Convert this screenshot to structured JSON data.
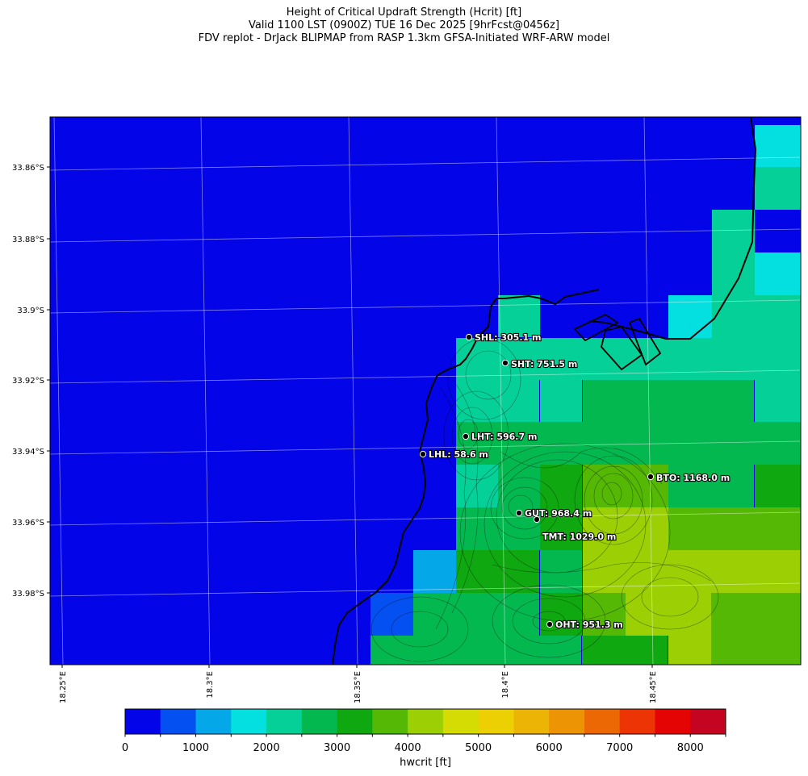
{
  "title": {
    "line1": "Height of Critical Updraft Strength (Hcrit) [ft]",
    "line2": "Valid 1100 LST (0900Z) TUE 16 Dec 2025 [9hrFcst@0456z]",
    "line3": "FDV replot - DrJack BLIPMAP from RASP 1.3km GFSA-Initiated WRF-ARW model"
  },
  "lat_ticks": [
    "33.86°S",
    "33.88°S",
    "33.9°S",
    "33.92°S",
    "33.94°S",
    "33.96°S",
    "33.98°S"
  ],
  "lon_ticks": [
    "18.25°E",
    "18.3°E",
    "18.35°E",
    "18.4°E",
    "18.45°E"
  ],
  "colorbar": {
    "label": "hwcrit [ft]",
    "tick_labels": [
      "0",
      "1000",
      "2000",
      "3000",
      "4000",
      "5000",
      "6000",
      "7000",
      "8000"
    ],
    "levels": [
      0,
      500,
      1000,
      1500,
      2000,
      2500,
      3000,
      3500,
      4000,
      4500,
      5000,
      5500,
      6000,
      6500,
      7000,
      7500,
      8000,
      8500
    ],
    "colors": [
      "#0404e8",
      "#0450f0",
      "#04a8e8",
      "#04e0e0",
      "#04d098",
      "#04b850",
      "#10a810",
      "#54b804",
      "#9cd004",
      "#d4dc04",
      "#ecd004",
      "#ecb404",
      "#ec9404",
      "#ec6804",
      "#ec3404",
      "#e40404",
      "#c40420"
    ]
  },
  "stations": [
    {
      "name": "SHL",
      "label": "SHL: 305.1 m"
    },
    {
      "name": "SHT",
      "label": "SHT: 751.5 m"
    },
    {
      "name": "LHT",
      "label": "LHT: 596.7 m"
    },
    {
      "name": "LHL",
      "label": "LHL: 58.6 m"
    },
    {
      "name": "BTO",
      "label": "BTO: 1168.0 m"
    },
    {
      "name": "GUT",
      "label": "GUT: 968.4 m"
    },
    {
      "name": "TMT",
      "label": "TMT: 1029.0 m"
    },
    {
      "name": "OHT",
      "label": "OHT: 951.3 m"
    }
  ]
}
